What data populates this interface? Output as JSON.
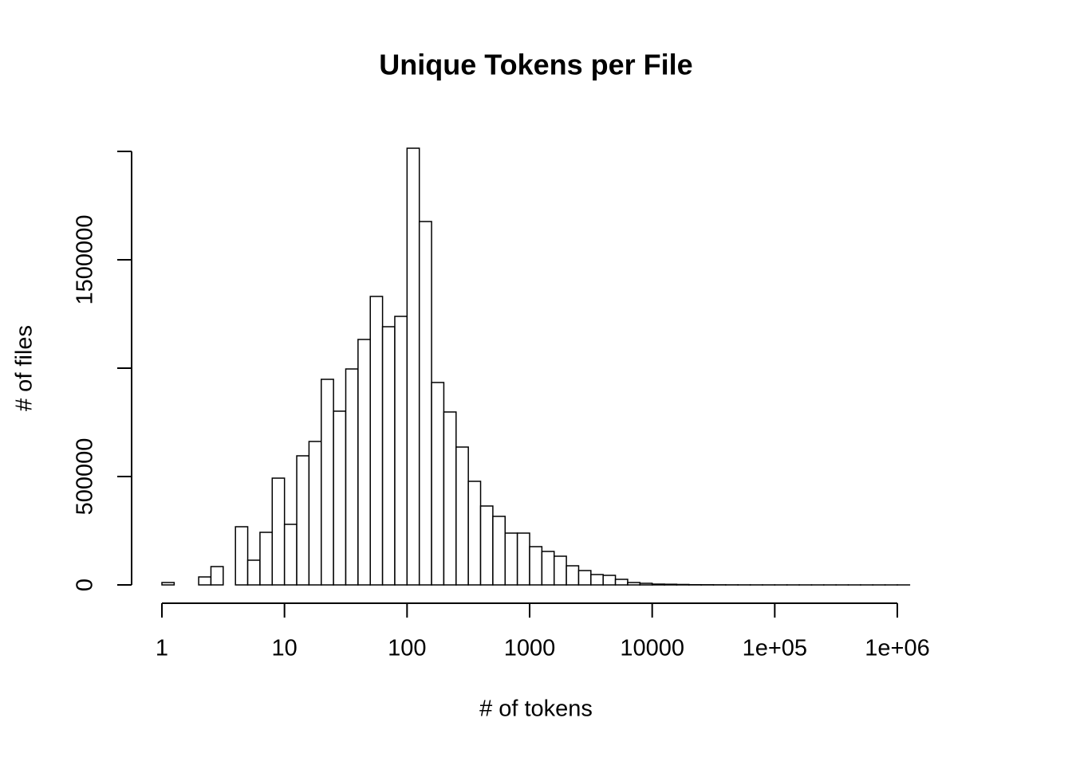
{
  "chart_data": {
    "type": "histogram",
    "title": "Unique Tokens per File",
    "xlabel": "# of tokens",
    "ylabel": "# of files",
    "xscale": "log",
    "color": "#ffffff",
    "edgecolor": "#000000",
    "bins": [
      1,
      1.259,
      1.585,
      1.995,
      2.512,
      3.162,
      3.981,
      5.012,
      6.31,
      7.943,
      10,
      12.59,
      15.85,
      19.95,
      25.12,
      31.62,
      39.81,
      50.12,
      63.1,
      79.43,
      100,
      125.9,
      158.5,
      199.5,
      251.2,
      316.2,
      398.1,
      501.2,
      631,
      794.3,
      1000,
      1259,
      1585,
      1995,
      2512,
      3162,
      3981,
      5012,
      6310,
      7943,
      10000,
      12589,
      15849,
      19953,
      25119,
      31623,
      39811,
      50119,
      63096,
      79433,
      100000,
      125893,
      158489,
      199526,
      251189,
      316228,
      398107,
      501187,
      630957,
      794328,
      1000000,
      1258925
    ],
    "values": [
      11000,
      0,
      0,
      36800,
      84600,
      0,
      268400,
      114000,
      242600,
      492600,
      279400,
      595600,
      661800,
      948500,
      801500,
      996300,
      1132400,
      1330900,
      1191200,
      1238900,
      2014700,
      1676500,
      933800,
      797800,
      636000,
      477900,
      364000,
      316200,
      239000,
      239000,
      176500,
      154400,
      132400,
      88200,
      66200,
      47800,
      44100,
      25700,
      11000,
      7400,
      3700,
      3000,
      2000,
      1000,
      800,
      500,
      300,
      200,
      150,
      100,
      80,
      50,
      30,
      20,
      10,
      5,
      3,
      2,
      1,
      1,
      1
    ],
    "xlim": [
      1,
      1000000
    ],
    "xticks": [
      1,
      10,
      100,
      1000,
      10000,
      {
        "value": 100000,
        "label": "1e+05"
      },
      {
        "value": 1000000,
        "label": "1e+06"
      }
    ],
    "ylim": [
      0,
      2000000
    ],
    "yticks": [
      0,
      500000,
      {
        "value": 1000000,
        "label": null
      },
      1500000,
      {
        "value": 2000000,
        "label": null
      }
    ]
  }
}
